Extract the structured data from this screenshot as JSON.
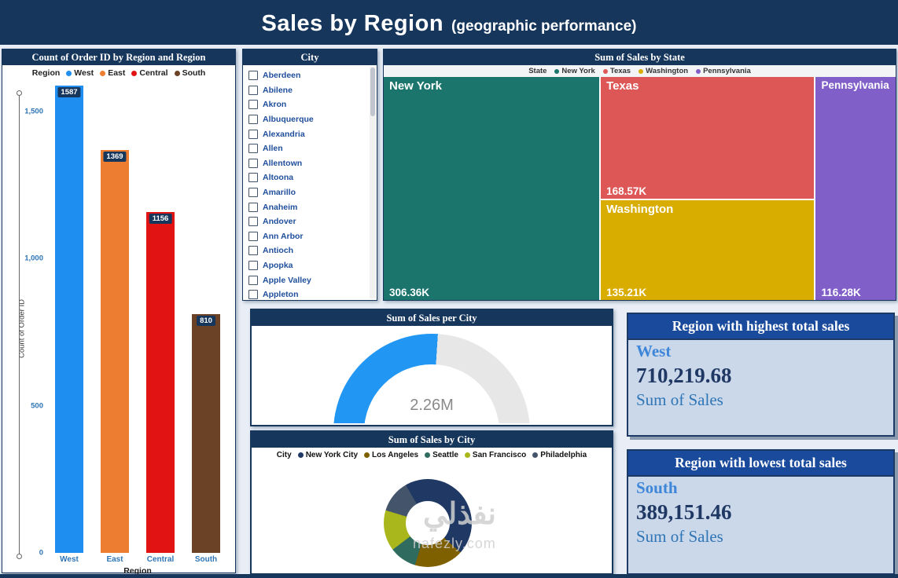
{
  "header": {
    "title": "Sales by Region",
    "subtitle": "(geographic performance)"
  },
  "bar_panel": {
    "title": "Count of Order ID by Region and Region",
    "legend_title": "Region",
    "y_axis_label": "Count of Order ID",
    "x_axis_label": "Region"
  },
  "city_slicer": {
    "title": "City",
    "items": [
      "Aberdeen",
      "Abilene",
      "Akron",
      "Albuquerque",
      "Alexandria",
      "Allen",
      "Allentown",
      "Altoona",
      "Amarillo",
      "Anaheim",
      "Andover",
      "Ann Arbor",
      "Antioch",
      "Apopka",
      "Apple Valley",
      "Appleton"
    ]
  },
  "treemap_panel": {
    "title": "Sum of Sales by State",
    "legend_title": "State"
  },
  "gauge_panel": {
    "title": "Sum of Sales per City",
    "value_label": "2.26M"
  },
  "donut_panel": {
    "title": "Sum of Sales by City",
    "legend_title": "City"
  },
  "cards": {
    "highest": {
      "title": "Region with highest total sales",
      "region": "West",
      "value": "710,219.68",
      "caption": "Sum of Sales"
    },
    "lowest": {
      "title": "Region with lowest total sales",
      "region": "South",
      "value": "389,151.46",
      "caption": "Sum of Sales"
    }
  },
  "watermark": {
    "arabic": "نفذلي",
    "site": "nafezly.com"
  },
  "colors": {
    "navy": "#16365C",
    "card_header_blue": "#1A4A9C",
    "tick_blue": "#2E75B6"
  },
  "chart_data": [
    {
      "type": "bar",
      "title": "Count of Order ID by Region and Region",
      "xlabel": "Region",
      "ylabel": "Count of Order ID",
      "ylim": [
        0,
        1600
      ],
      "yticks": [
        0,
        500,
        1000,
        1500
      ],
      "legend_position": "top",
      "grid": false,
      "categories": [
        "West",
        "East",
        "Central",
        "South"
      ],
      "values": [
        1587,
        1369,
        1156,
        810
      ],
      "colors": [
        "#1E8EF0",
        "#ED7D31",
        "#E21313",
        "#6B4226"
      ]
    },
    {
      "type": "treemap",
      "title": "Sum of Sales by State",
      "legend_title": "State",
      "items": [
        {
          "name": "New York",
          "value_label": "306.36K",
          "value": 306360,
          "color": "#1B756C"
        },
        {
          "name": "Texas",
          "value_label": "168.57K",
          "value": 168570,
          "color": "#DD5757"
        },
        {
          "name": "Washington",
          "value_label": "135.21K",
          "value": 135210,
          "color": "#D9AC00"
        },
        {
          "name": "Pennsylvania",
          "value_label": "116.28K",
          "value": 116280,
          "color": "#8060C8"
        }
      ]
    },
    {
      "type": "gauge",
      "title": "Sum of Sales per City",
      "value_label": "2.26M",
      "fraction": 0.52,
      "arc_color": "#2196F3",
      "rest_color": "#E7E7E7"
    },
    {
      "type": "pie",
      "title": "Sum of Sales by City",
      "legend_title": "City",
      "start_angle_deg": -30,
      "items": [
        {
          "name": "New York City",
          "pct": 45,
          "color": "#1F3864"
        },
        {
          "name": "Los Angeles",
          "pct": 18,
          "color": "#7F6000"
        },
        {
          "name": "Seattle",
          "pct": 10,
          "color": "#2F6B5F"
        },
        {
          "name": "San Francisco",
          "pct": 15,
          "color": "#A9B71D"
        },
        {
          "name": "Philadelphia",
          "pct": 12,
          "color": "#44546A"
        }
      ]
    }
  ]
}
